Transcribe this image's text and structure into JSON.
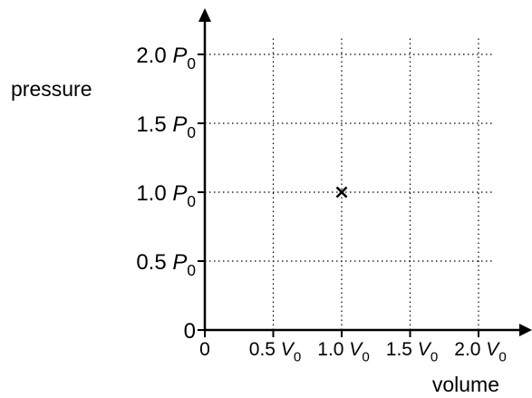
{
  "chart_data": {
    "type": "scatter",
    "xlabel": "volume",
    "ylabel": "pressure",
    "xlim": [
      0,
      2.0
    ],
    "ylim": [
      0,
      2.0
    ],
    "grid": "dotted",
    "x_ticks": [
      {
        "value": 0,
        "coef": "0",
        "sym": ""
      },
      {
        "value": 0.5,
        "coef": "0.5",
        "sym": "V"
      },
      {
        "value": 1.0,
        "coef": "1.0",
        "sym": "V"
      },
      {
        "value": 1.5,
        "coef": "1.5",
        "sym": "V"
      },
      {
        "value": 2.0,
        "coef": "2.0",
        "sym": "V"
      }
    ],
    "y_ticks": [
      {
        "value": 0,
        "coef": "0",
        "sym": ""
      },
      {
        "value": 0.5,
        "coef": "0.5",
        "sym": "P"
      },
      {
        "value": 1.0,
        "coef": "1.0",
        "sym": "P"
      },
      {
        "value": 1.5,
        "coef": "1.5",
        "sym": "P"
      },
      {
        "value": 2.0,
        "coef": "2.0",
        "sym": "P"
      }
    ],
    "subscript": "0",
    "points": [
      {
        "x": 1.0,
        "y": 1.0,
        "marker": "×"
      }
    ]
  }
}
